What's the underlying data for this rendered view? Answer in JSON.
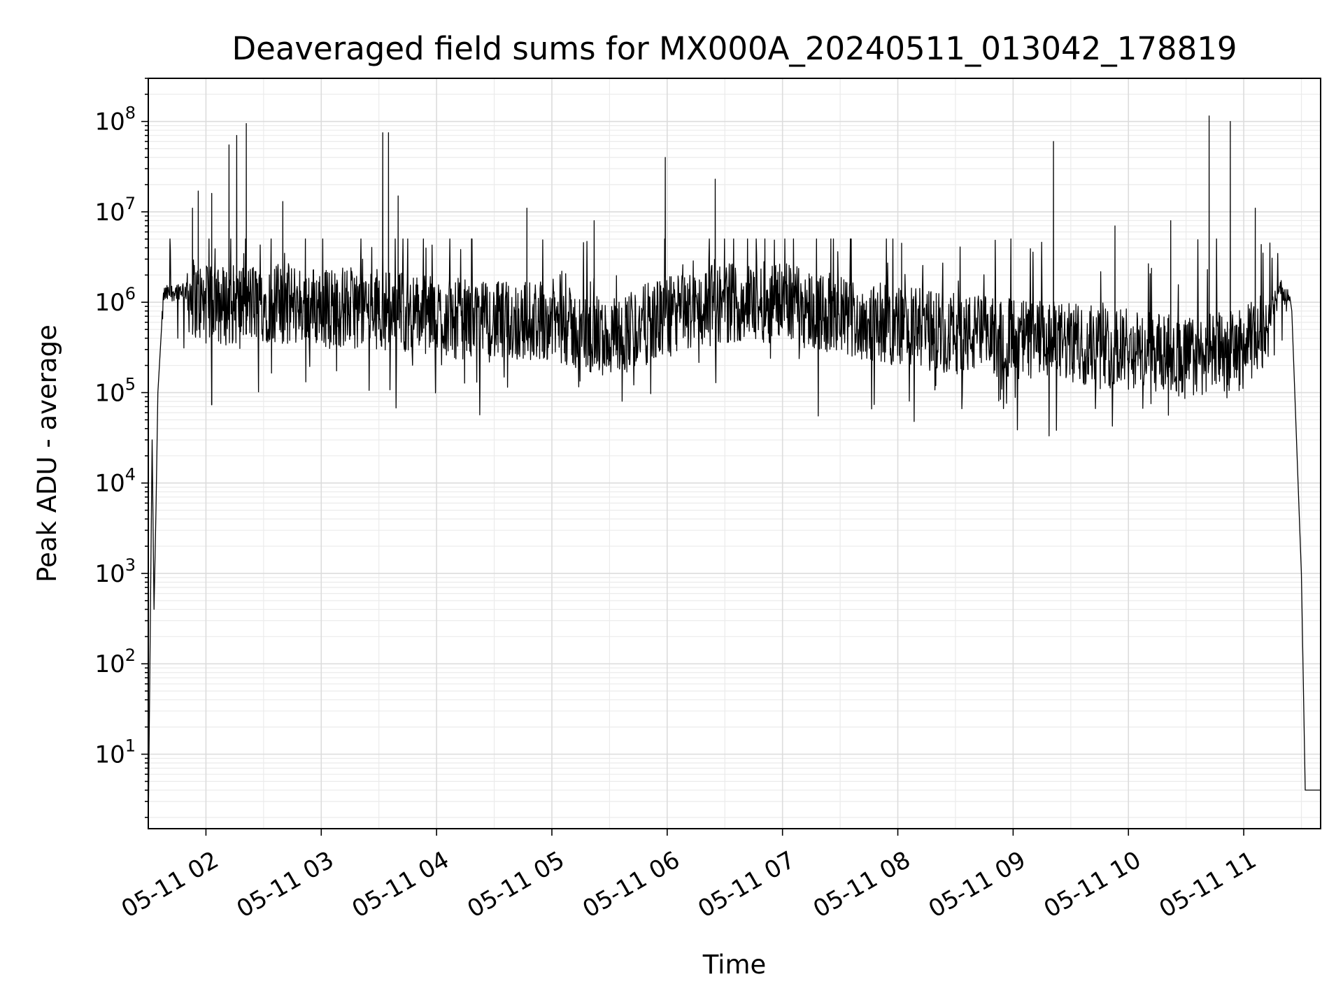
{
  "chart_data": {
    "type": "line",
    "title": "Deaveraged field sums for MX000A_20240511_013042_178819",
    "xlabel": "Time",
    "ylabel": "Peak ADU - average",
    "yscale": "log",
    "grid": "major and minor on both axes",
    "line_color": "#000000",
    "xlim": [
      "05-11 01:30",
      "05-11 11:40"
    ],
    "ylim": [
      1.5,
      300000000
    ],
    "x_ticks": [
      {
        "label": "05-11 02",
        "hour": 2
      },
      {
        "label": "05-11 03",
        "hour": 3
      },
      {
        "label": "05-11 04",
        "hour": 4
      },
      {
        "label": "05-11 05",
        "hour": 5
      },
      {
        "label": "05-11 06",
        "hour": 6
      },
      {
        "label": "05-11 07",
        "hour": 7
      },
      {
        "label": "05-11 08",
        "hour": 8
      },
      {
        "label": "05-11 09",
        "hour": 9
      },
      {
        "label": "05-11 10",
        "hour": 10
      },
      {
        "label": "05-11 11",
        "hour": 11
      }
    ],
    "y_ticks": [
      {
        "base": "10",
        "exp": "1",
        "value": 10
      },
      {
        "base": "10",
        "exp": "2",
        "value": 100
      },
      {
        "base": "10",
        "exp": "3",
        "value": 1000
      },
      {
        "base": "10",
        "exp": "4",
        "value": 10000
      },
      {
        "base": "10",
        "exp": "5",
        "value": 100000
      },
      {
        "base": "10",
        "exp": "6",
        "value": 1000000
      },
      {
        "base": "10",
        "exp": "7",
        "value": 10000000
      },
      {
        "base": "10",
        "exp": "8",
        "value": 100000000
      }
    ],
    "series": [
      {
        "name": "",
        "baseline": [
          {
            "t": "05-11 01:30",
            "v": 1.5
          },
          {
            "t": "05-11 01:32",
            "v": 30000
          },
          {
            "t": "05-11 01:33",
            "v": 400
          },
          {
            "t": "05-11 01:34",
            "v": 5000
          },
          {
            "t": "05-11 01:35",
            "v": 100000
          },
          {
            "t": "05-11 01:38",
            "v": 1200000
          },
          {
            "t": "05-11 01:48",
            "v": 1400000
          },
          {
            "t": "05-11 02:00",
            "v": 900000
          },
          {
            "t": "05-11 02:30",
            "v": 1000000
          },
          {
            "t": "05-11 03:00",
            "v": 900000
          },
          {
            "t": "05-11 03:30",
            "v": 850000
          },
          {
            "t": "05-11 04:00",
            "v": 700000
          },
          {
            "t": "05-11 04:30",
            "v": 600000
          },
          {
            "t": "05-11 05:00",
            "v": 650000
          },
          {
            "t": "05-11 05:15",
            "v": 450000
          },
          {
            "t": "05-11 05:30",
            "v": 400000
          },
          {
            "t": "05-11 06:00",
            "v": 700000
          },
          {
            "t": "05-11 06:30",
            "v": 1000000
          },
          {
            "t": "05-11 07:00",
            "v": 1000000
          },
          {
            "t": "05-11 07:30",
            "v": 700000
          },
          {
            "t": "05-11 08:00",
            "v": 550000
          },
          {
            "t": "05-11 08:30",
            "v": 450000
          },
          {
            "t": "05-11 09:00",
            "v": 400000
          },
          {
            "t": "05-11 09:30",
            "v": 350000
          },
          {
            "t": "05-11 10:00",
            "v": 300000
          },
          {
            "t": "05-11 10:30",
            "v": 250000
          },
          {
            "t": "05-11 11:00",
            "v": 300000
          },
          {
            "t": "05-11 11:10",
            "v": 500000
          },
          {
            "t": "05-11 11:20",
            "v": 1400000
          },
          {
            "t": "05-11 11:25",
            "v": 800000
          },
          {
            "t": "05-11 11:30",
            "v": 1000
          },
          {
            "t": "05-11 11:32",
            "v": 4
          },
          {
            "t": "05-11 11:40",
            "v": 4
          }
        ],
        "spikes": [
          {
            "t": "05-11 01:53",
            "v": 11000000
          },
          {
            "t": "05-11 01:56",
            "v": 17000000
          },
          {
            "t": "05-11 02:03",
            "v": 16000000
          },
          {
            "t": "05-11 02:12",
            "v": 55000000
          },
          {
            "t": "05-11 02:16",
            "v": 70000000
          },
          {
            "t": "05-11 02:21",
            "v": 95000000
          },
          {
            "t": "05-11 02:40",
            "v": 13000000
          },
          {
            "t": "05-11 03:32",
            "v": 75000000
          },
          {
            "t": "05-11 03:35",
            "v": 75000000
          },
          {
            "t": "05-11 03:40",
            "v": 15000000
          },
          {
            "t": "05-11 04:47",
            "v": 11000000
          },
          {
            "t": "05-11 05:22",
            "v": 8000000
          },
          {
            "t": "05-11 05:59",
            "v": 40000000
          },
          {
            "t": "05-11 06:25",
            "v": 23000000
          },
          {
            "t": "05-11 08:02",
            "v": 4500000
          },
          {
            "t": "05-11 09:21",
            "v": 60000000
          },
          {
            "t": "05-11 09:53",
            "v": 7000000
          },
          {
            "t": "05-11 10:22",
            "v": 8000000
          },
          {
            "t": "05-11 10:42",
            "v": 115000000
          },
          {
            "t": "05-11 10:53",
            "v": 100000000
          },
          {
            "t": "05-11 11:06",
            "v": 11000000
          }
        ]
      }
    ]
  }
}
